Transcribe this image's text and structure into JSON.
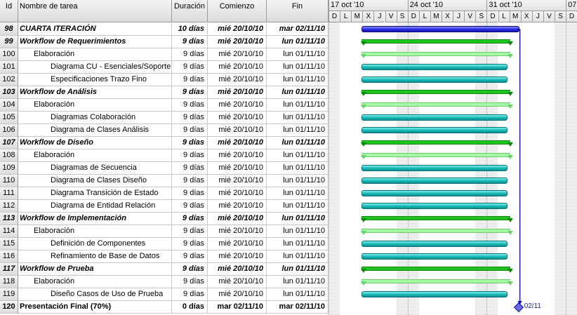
{
  "columns": {
    "id": "Id",
    "name": "Nombre de tarea",
    "duration": "Duración",
    "start": "Comienzo",
    "end": "Fin"
  },
  "weeks": [
    "17 oct '10",
    "24 oct '10",
    "31 oct '10",
    "07"
  ],
  "day_letters": [
    "D",
    "L",
    "M",
    "X",
    "J",
    "V",
    "S",
    "D",
    "L",
    "M",
    "X",
    "J",
    "V",
    "S",
    "D",
    "L",
    "M",
    "X",
    "J",
    "V",
    "S",
    "D"
  ],
  "tasks": [
    {
      "id": "98",
      "name": "CUARTA ITERACIÓN",
      "duration": "10 días",
      "start": "mié 20/10/10",
      "end": "mar 02/11/10",
      "level": 0,
      "style": "bold",
      "type": "blue"
    },
    {
      "id": "99",
      "name": "Workflow de Requerimientos",
      "duration": "9 días",
      "start": "mié 20/10/10",
      "end": "lun 01/11/10",
      "level": 0,
      "style": "bold",
      "type": "summary-dark"
    },
    {
      "id": "100",
      "name": "Elaboración",
      "duration": "9 días",
      "start": "mié 20/10/10",
      "end": "lun 01/11/10",
      "level": 1,
      "style": "normal",
      "type": "summary-light"
    },
    {
      "id": "101",
      "name": "Diagrama CU - Esenciales/Soporte",
      "duration": "9 días",
      "start": "mié 20/10/10",
      "end": "lun 01/11/10",
      "level": 2,
      "style": "normal",
      "type": "task"
    },
    {
      "id": "102",
      "name": "Especificaciones Trazo Fino",
      "duration": "9 días",
      "start": "mié 20/10/10",
      "end": "lun 01/11/10",
      "level": 2,
      "style": "normal",
      "type": "task"
    },
    {
      "id": "103",
      "name": "Workflow de Análisis",
      "duration": "9 días",
      "start": "mié 20/10/10",
      "end": "lun 01/11/10",
      "level": 0,
      "style": "bold",
      "type": "summary-dark"
    },
    {
      "id": "104",
      "name": "Elaboración",
      "duration": "9 días",
      "start": "mié 20/10/10",
      "end": "lun 01/11/10",
      "level": 1,
      "style": "normal",
      "type": "summary-light"
    },
    {
      "id": "105",
      "name": "Diagramas Colaboración",
      "duration": "9 días",
      "start": "mié 20/10/10",
      "end": "lun 01/11/10",
      "level": 2,
      "style": "normal",
      "type": "task"
    },
    {
      "id": "106",
      "name": "Diagrama de Clases Análisis",
      "duration": "9 días",
      "start": "mié 20/10/10",
      "end": "lun 01/11/10",
      "level": 2,
      "style": "normal",
      "type": "task"
    },
    {
      "id": "107",
      "name": "Workflow de Diseño",
      "duration": "9 días",
      "start": "mié 20/10/10",
      "end": "lun 01/11/10",
      "level": 0,
      "style": "bold",
      "type": "summary-dark"
    },
    {
      "id": "108",
      "name": "Elaboración",
      "duration": "9 días",
      "start": "mié 20/10/10",
      "end": "lun 01/11/10",
      "level": 1,
      "style": "normal",
      "type": "summary-light"
    },
    {
      "id": "109",
      "name": "Diagramas de Secuencia",
      "duration": "9 días",
      "start": "mié 20/10/10",
      "end": "lun 01/11/10",
      "level": 2,
      "style": "normal",
      "type": "task"
    },
    {
      "id": "110",
      "name": "Diagrama de Clases Diseño",
      "duration": "9 días",
      "start": "mié 20/10/10",
      "end": "lun 01/11/10",
      "level": 2,
      "style": "normal",
      "type": "task"
    },
    {
      "id": "111",
      "name": "Diagrama Transición de Estado",
      "duration": "9 días",
      "start": "mié 20/10/10",
      "end": "lun 01/11/10",
      "level": 2,
      "style": "normal",
      "type": "task"
    },
    {
      "id": "112",
      "name": "Diagrama de Entidad Relación",
      "duration": "9 días",
      "start": "mié 20/10/10",
      "end": "lun 01/11/10",
      "level": 2,
      "style": "normal",
      "type": "task"
    },
    {
      "id": "113",
      "name": "Workflow de Implementación",
      "duration": "9 días",
      "start": "mié 20/10/10",
      "end": "lun 01/11/10",
      "level": 0,
      "style": "bold",
      "type": "summary-dark"
    },
    {
      "id": "114",
      "name": "Elaboración",
      "duration": "9 días",
      "start": "mié 20/10/10",
      "end": "lun 01/11/10",
      "level": 1,
      "style": "normal",
      "type": "summary-light"
    },
    {
      "id": "115",
      "name": "Definición de Componentes",
      "duration": "9 días",
      "start": "mié 20/10/10",
      "end": "lun 01/11/10",
      "level": 2,
      "style": "normal",
      "type": "task"
    },
    {
      "id": "116",
      "name": "Refinamiento de Base de Datos",
      "duration": "9 días",
      "start": "mié 20/10/10",
      "end": "lun 01/11/10",
      "level": 2,
      "style": "normal",
      "type": "task"
    },
    {
      "id": "117",
      "name": "Workflow de Prueba",
      "duration": "9 días",
      "start": "mié 20/10/10",
      "end": "lun 01/11/10",
      "level": 0,
      "style": "bold",
      "type": "summary-dark"
    },
    {
      "id": "118",
      "name": "Elaboración",
      "duration": "9 días",
      "start": "mié 20/10/10",
      "end": "lun 01/11/10",
      "level": 1,
      "style": "normal",
      "type": "summary-light"
    },
    {
      "id": "119",
      "name": "Diseño Casos de Uso de Prueba",
      "duration": "9 días",
      "start": "mié 20/10/10",
      "end": "lun 01/11/10",
      "level": 2,
      "style": "normal",
      "type": "task"
    },
    {
      "id": "120",
      "name": "Presentación Final (70%)",
      "duration": "0 días",
      "start": "mar 02/11/10",
      "end": "mar 02/11/10",
      "level": 0,
      "style": "semibold",
      "type": "milestone",
      "milestone_label": "02/11"
    }
  ],
  "colors": {
    "task": "#19b7b5",
    "summary_dark": "#1fc21f",
    "summary_light": "#a8f7a8",
    "project": "#2a2ae8",
    "link": "#0000cc"
  }
}
